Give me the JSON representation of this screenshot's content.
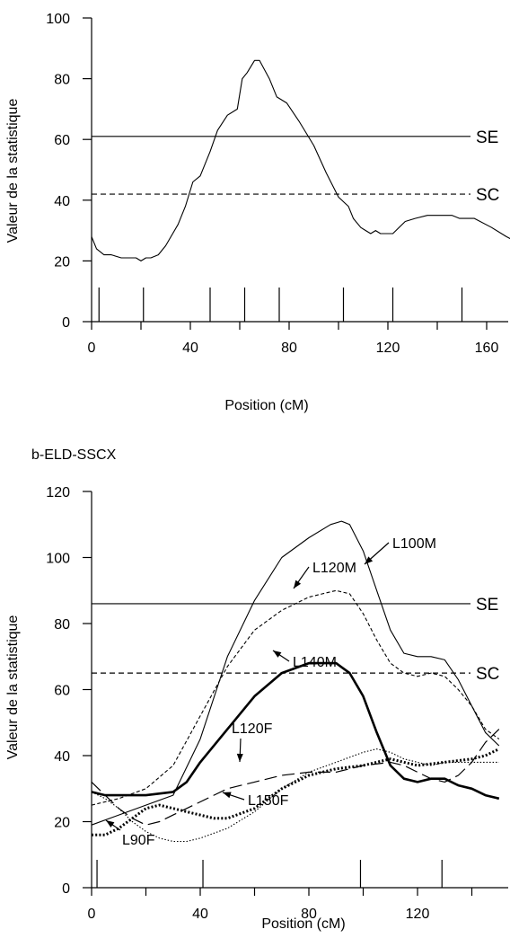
{
  "chart_data": [
    {
      "type": "line",
      "title": "",
      "xlabel": "Position (cM)",
      "ylabel": "Valeur  de la statistique",
      "xlim": [
        0,
        175
      ],
      "ylim": [
        0,
        100
      ],
      "xticks": [
        0,
        40,
        80,
        120,
        160
      ],
      "yticks": [
        0,
        20,
        40,
        60,
        80,
        100
      ],
      "thresholds": [
        {
          "name": "SE",
          "value": 61,
          "style": "solid"
        },
        {
          "name": "SC",
          "value": 42,
          "style": "dashed"
        }
      ],
      "markers": [
        3,
        21,
        48,
        62,
        76,
        102,
        122,
        150
      ],
      "series": [
        {
          "name": "",
          "style": "solid-thin",
          "x": [
            0,
            2,
            5,
            8,
            12,
            15,
            18,
            20,
            22,
            24,
            27,
            30,
            35,
            38,
            41,
            44,
            48,
            51,
            55,
            59,
            61,
            63,
            66,
            68,
            72,
            75,
            79,
            84,
            90,
            95,
            100,
            104,
            106,
            109,
            111,
            113,
            115,
            117,
            122,
            127,
            131,
            136,
            141,
            146,
            149,
            155,
            162,
            168,
            175
          ],
          "y": [
            28,
            24,
            22,
            22,
            21,
            21,
            21,
            20,
            21,
            21,
            22,
            25,
            32,
            38,
            46,
            48,
            56,
            63,
            68,
            70,
            80,
            82,
            86,
            86,
            80,
            74,
            72,
            66,
            58,
            49,
            41,
            38,
            34,
            31,
            30,
            29,
            30,
            29,
            29,
            33,
            34,
            35,
            35,
            35,
            34,
            34,
            31,
            28,
            25
          ]
        }
      ]
    },
    {
      "type": "line",
      "title": "b-ELD-SSCX",
      "xlabel": "Position (cM)",
      "ylabel": "Valeur  de la statistique",
      "xlim": [
        0,
        152
      ],
      "ylim": [
        0,
        120
      ],
      "xticks": [
        0,
        40,
        80,
        120
      ],
      "yticks": [
        0,
        20,
        40,
        60,
        80,
        100,
        120
      ],
      "thresholds": [
        {
          "name": "SE",
          "value": 86,
          "style": "solid"
        },
        {
          "name": "SC",
          "value": 65,
          "style": "dashed"
        }
      ],
      "markers": [
        2,
        41,
        99,
        129
      ],
      "series": [
        {
          "name": "L100M",
          "style": "solid-thin",
          "x": [
            0,
            10,
            20,
            30,
            40,
            50,
            60,
            70,
            80,
            88,
            92,
            95,
            100,
            105,
            110,
            115,
            120,
            125,
            130,
            135,
            140,
            145,
            150
          ],
          "y": [
            19,
            22,
            25,
            28,
            45,
            70,
            87,
            100,
            106,
            110,
            111,
            110,
            102,
            90,
            78,
            71,
            70,
            70,
            69,
            63,
            55,
            47,
            43
          ]
        },
        {
          "name": "L120M",
          "style": "dashed-fine",
          "x": [
            0,
            10,
            20,
            30,
            40,
            50,
            60,
            70,
            80,
            85,
            90,
            95,
            100,
            105,
            110,
            115,
            120,
            125,
            130,
            135,
            140,
            145,
            150
          ],
          "y": [
            25,
            27,
            30,
            37,
            52,
            67,
            78,
            84,
            88,
            89,
            90,
            89,
            83,
            75,
            68,
            65,
            64,
            65,
            64,
            60,
            55,
            48,
            45
          ]
        },
        {
          "name": "L140M",
          "style": "solid-thick",
          "x": [
            0,
            5,
            10,
            20,
            30,
            35,
            40,
            50,
            60,
            70,
            80,
            90,
            95,
            100,
            105,
            110,
            115,
            120,
            125,
            130,
            135,
            140,
            145,
            150
          ],
          "y": [
            29,
            28,
            28,
            28,
            29,
            32,
            38,
            48,
            58,
            65,
            68,
            68,
            65,
            58,
            47,
            37,
            33,
            32,
            33,
            33,
            31,
            30,
            28,
            27
          ]
        },
        {
          "name": "L120F",
          "style": "long-dash",
          "x": [
            0,
            5,
            10,
            15,
            20,
            25,
            30,
            40,
            50,
            60,
            70,
            80,
            90,
            100,
            110,
            115,
            120,
            125,
            130,
            135,
            140,
            145,
            150
          ],
          "y": [
            32,
            28,
            24,
            21,
            19,
            20,
            22,
            26,
            30,
            32,
            34,
            35,
            35,
            37,
            38,
            37,
            35,
            33,
            32,
            34,
            38,
            44,
            48
          ]
        },
        {
          "name": "L150F",
          "style": "dotted-fine",
          "x": [
            0,
            5,
            10,
            15,
            20,
            25,
            30,
            35,
            40,
            50,
            60,
            70,
            80,
            90,
            100,
            105,
            110,
            115,
            120,
            125,
            130,
            140,
            150
          ],
          "y": [
            29,
            27,
            24,
            20,
            17,
            15,
            14,
            14,
            15,
            18,
            23,
            30,
            35,
            38,
            41,
            42,
            41,
            39,
            38,
            37,
            38,
            38,
            38
          ]
        },
        {
          "name": "L90F",
          "style": "dotted-thick",
          "x": [
            0,
            5,
            10,
            15,
            20,
            25,
            30,
            35,
            40,
            45,
            50,
            60,
            70,
            80,
            90,
            100,
            110,
            115,
            120,
            130,
            140,
            145,
            150
          ],
          "y": [
            16,
            16,
            18,
            21,
            24,
            25,
            24,
            23,
            22,
            21,
            21,
            24,
            30,
            34,
            36,
            37,
            39,
            38,
            37,
            38,
            39,
            40,
            42
          ]
        }
      ]
    }
  ]
}
